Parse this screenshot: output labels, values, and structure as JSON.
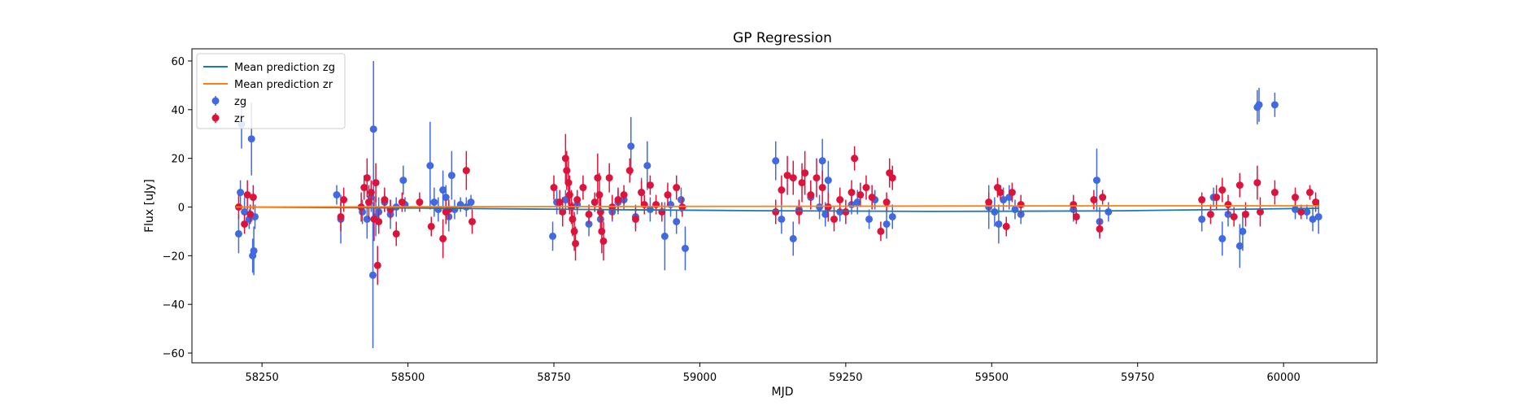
{
  "chart_data": {
    "type": "scatter",
    "title": "GP Regression",
    "xlabel": "MJD",
    "ylabel": "Flux [uJy]",
    "xlim": [
      58130,
      60160
    ],
    "ylim": [
      -64,
      65
    ],
    "xticks": [
      58250,
      58500,
      58750,
      59000,
      59250,
      59500,
      59750,
      60000
    ],
    "yticks": [
      -60,
      -40,
      -20,
      0,
      20,
      40,
      60
    ],
    "grid": false,
    "legend_position": "top-left",
    "lines": [
      {
        "name": "Mean prediction zg",
        "color": "#1f77b4",
        "x": [
          58205,
          58500,
          58800,
          59100,
          59400,
          59700,
          59900,
          60060
        ],
        "y": [
          0.0,
          -0.4,
          -1.0,
          -1.5,
          -1.8,
          -1.6,
          -1.0,
          -0.5
        ]
      },
      {
        "name": "Mean prediction zr",
        "color": "#ff7f0e",
        "x": [
          58205,
          58500,
          58800,
          59100,
          59400,
          59700,
          59900,
          60060
        ],
        "y": [
          0.0,
          0.1,
          0.2,
          0.3,
          0.4,
          0.5,
          0.5,
          0.5
        ]
      }
    ],
    "series": [
      {
        "name": "zg",
        "color": "#4169e1",
        "points": [
          [
            58210,
            -11,
            8
          ],
          [
            58213,
            6,
            5
          ],
          [
            58215,
            34,
            10
          ],
          [
            58220,
            -2,
            6
          ],
          [
            58228,
            -5,
            4
          ],
          [
            58232,
            28,
            15
          ],
          [
            58234,
            -20,
            7
          ],
          [
            58236,
            -18,
            10
          ],
          [
            58238,
            -4,
            5
          ],
          [
            58378,
            5,
            4
          ],
          [
            58385,
            -5,
            10
          ],
          [
            58422,
            -2,
            5
          ],
          [
            58430,
            -5,
            8
          ],
          [
            58437,
            4,
            6
          ],
          [
            58440,
            -28,
            30
          ],
          [
            58441,
            32,
            28
          ],
          [
            58445,
            -4,
            8
          ],
          [
            58450,
            -2,
            6
          ],
          [
            58460,
            2,
            4
          ],
          [
            58470,
            -3,
            6
          ],
          [
            58480,
            0,
            4
          ],
          [
            58492,
            11,
            6
          ],
          [
            58495,
            1,
            3
          ],
          [
            58538,
            17,
            18
          ],
          [
            58545,
            2,
            6
          ],
          [
            58552,
            -1,
            5
          ],
          [
            58560,
            7,
            8
          ],
          [
            58565,
            4,
            5
          ],
          [
            58570,
            -4,
            6
          ],
          [
            58575,
            13,
            10
          ],
          [
            58580,
            -1,
            4
          ],
          [
            58590,
            1,
            3
          ],
          [
            58600,
            0,
            4
          ],
          [
            58608,
            2,
            3
          ],
          [
            58748,
            -12,
            6
          ],
          [
            58755,
            2,
            5
          ],
          [
            58770,
            3,
            4
          ],
          [
            58790,
            1,
            4
          ],
          [
            58810,
            -7,
            5
          ],
          [
            58830,
            -5,
            6
          ],
          [
            58850,
            -2,
            4
          ],
          [
            58860,
            2,
            5
          ],
          [
            58870,
            3,
            4
          ],
          [
            58882,
            25,
            12
          ],
          [
            58890,
            -4,
            5
          ],
          [
            58900,
            6,
            6
          ],
          [
            58910,
            17,
            10
          ],
          [
            58915,
            -1,
            5
          ],
          [
            58940,
            -12,
            14
          ],
          [
            58950,
            1,
            5
          ],
          [
            58960,
            -6,
            5
          ],
          [
            58968,
            3,
            5
          ],
          [
            58975,
            -17,
            9
          ],
          [
            59130,
            19,
            8
          ],
          [
            59140,
            -5,
            6
          ],
          [
            59160,
            -13,
            7
          ],
          [
            59170,
            -1,
            4
          ],
          [
            59190,
            4,
            5
          ],
          [
            59205,
            0,
            5
          ],
          [
            59210,
            19,
            9
          ],
          [
            59215,
            -3,
            5
          ],
          [
            59220,
            11,
            8
          ],
          [
            59240,
            -2,
            4
          ],
          [
            59260,
            1,
            4
          ],
          [
            59270,
            2,
            5
          ],
          [
            59290,
            -5,
            4
          ],
          [
            59300,
            3,
            4
          ],
          [
            59320,
            -7,
            6
          ],
          [
            59330,
            -4,
            5
          ],
          [
            59495,
            0,
            9
          ],
          [
            59505,
            -2,
            6
          ],
          [
            59512,
            -7,
            8
          ],
          [
            59520,
            3,
            5
          ],
          [
            59530,
            4,
            5
          ],
          [
            59540,
            -1,
            4
          ],
          [
            59550,
            -3,
            4
          ],
          [
            59640,
            -1,
            5
          ],
          [
            59680,
            11,
            13
          ],
          [
            59685,
            -6,
            6
          ],
          [
            59700,
            -2,
            4
          ],
          [
            59860,
            -5,
            5
          ],
          [
            59880,
            4,
            4
          ],
          [
            59895,
            -13,
            7
          ],
          [
            59905,
            -3,
            5
          ],
          [
            59925,
            -16,
            9
          ],
          [
            59930,
            -10,
            8
          ],
          [
            59955,
            41,
            7
          ],
          [
            59958,
            42,
            7
          ],
          [
            59985,
            42,
            5
          ],
          [
            60020,
            -1,
            4
          ],
          [
            60040,
            -2,
            3
          ],
          [
            60050,
            -5,
            5
          ],
          [
            60060,
            -4,
            7
          ]
        ]
      },
      {
        "name": "zr",
        "color": "#dc143c",
        "points": [
          [
            58210,
            0,
            5
          ],
          [
            58220,
            -7,
            4
          ],
          [
            58225,
            5,
            6
          ],
          [
            58230,
            -3,
            4
          ],
          [
            58235,
            4,
            5
          ],
          [
            58385,
            -4,
            6
          ],
          [
            58390,
            3,
            5
          ],
          [
            58420,
            0,
            6
          ],
          [
            58425,
            8,
            5
          ],
          [
            58430,
            12,
            8
          ],
          [
            58433,
            2,
            7
          ],
          [
            58437,
            6,
            5
          ],
          [
            58442,
            -5,
            9
          ],
          [
            58445,
            10,
            8
          ],
          [
            58448,
            -24,
            8
          ],
          [
            58450,
            -6,
            5
          ],
          [
            58460,
            3,
            5
          ],
          [
            58470,
            -1,
            4
          ],
          [
            58480,
            -11,
            5
          ],
          [
            58490,
            2,
            4
          ],
          [
            58520,
            2,
            4
          ],
          [
            58540,
            -8,
            4
          ],
          [
            58560,
            -13,
            8
          ],
          [
            58565,
            -2,
            5
          ],
          [
            58570,
            -1,
            4
          ],
          [
            58600,
            15,
            8
          ],
          [
            58610,
            -6,
            5
          ],
          [
            58750,
            8,
            5
          ],
          [
            58760,
            2,
            5
          ],
          [
            58765,
            -2,
            6
          ],
          [
            58770,
            20,
            10
          ],
          [
            58772,
            15,
            8
          ],
          [
            58775,
            10,
            9
          ],
          [
            58777,
            5,
            8
          ],
          [
            58780,
            0,
            7
          ],
          [
            58782,
            -5,
            7
          ],
          [
            58785,
            -10,
            8
          ],
          [
            58787,
            -15,
            7
          ],
          [
            58790,
            3,
            4
          ],
          [
            58800,
            8,
            5
          ],
          [
            58810,
            -3,
            4
          ],
          [
            58820,
            2,
            4
          ],
          [
            58825,
            12,
            10
          ],
          [
            58828,
            5,
            9
          ],
          [
            58830,
            -2,
            8
          ],
          [
            58832,
            -10,
            9
          ],
          [
            58835,
            -14,
            8
          ],
          [
            58845,
            12,
            6
          ],
          [
            58850,
            0,
            5
          ],
          [
            58860,
            3,
            5
          ],
          [
            58870,
            5,
            4
          ],
          [
            58880,
            15,
            5
          ],
          [
            58890,
            -5,
            5
          ],
          [
            58900,
            6,
            5
          ],
          [
            58905,
            1,
            4
          ],
          [
            58915,
            9,
            4
          ],
          [
            58925,
            1,
            4
          ],
          [
            58935,
            -2,
            4
          ],
          [
            58945,
            5,
            5
          ],
          [
            58960,
            8,
            5
          ],
          [
            58970,
            0,
            4
          ],
          [
            59130,
            -2,
            5
          ],
          [
            59140,
            7,
            6
          ],
          [
            59150,
            13,
            8
          ],
          [
            59160,
            12,
            7
          ],
          [
            59170,
            -2,
            5
          ],
          [
            59175,
            10,
            8
          ],
          [
            59180,
            14,
            9
          ],
          [
            59190,
            5,
            6
          ],
          [
            59200,
            12,
            8
          ],
          [
            59210,
            8,
            7
          ],
          [
            59220,
            0,
            6
          ],
          [
            59230,
            -5,
            5
          ],
          [
            59240,
            3,
            5
          ],
          [
            59250,
            -2,
            5
          ],
          [
            59260,
            6,
            5
          ],
          [
            59265,
            20,
            5
          ],
          [
            59275,
            5,
            5
          ],
          [
            59285,
            8,
            5
          ],
          [
            59295,
            4,
            5
          ],
          [
            59310,
            -10,
            4
          ],
          [
            59320,
            2,
            4
          ],
          [
            59325,
            14,
            6
          ],
          [
            59330,
            12,
            5
          ],
          [
            59495,
            2,
            4
          ],
          [
            59510,
            8,
            4
          ],
          [
            59515,
            6,
            3
          ],
          [
            59525,
            -8,
            4
          ],
          [
            59535,
            6,
            4
          ],
          [
            59550,
            1,
            4
          ],
          [
            59640,
            1,
            4
          ],
          [
            59645,
            -4,
            3
          ],
          [
            59675,
            3,
            4
          ],
          [
            59685,
            -9,
            4
          ],
          [
            59690,
            4,
            3
          ],
          [
            59860,
            3,
            3
          ],
          [
            59875,
            -3,
            4
          ],
          [
            59885,
            4,
            5
          ],
          [
            59895,
            7,
            5
          ],
          [
            59905,
            1,
            4
          ],
          [
            59915,
            -4,
            4
          ],
          [
            59925,
            9,
            5
          ],
          [
            59935,
            -3,
            5
          ],
          [
            59955,
            10,
            7
          ],
          [
            59960,
            -2,
            6
          ],
          [
            59985,
            6,
            5
          ],
          [
            60020,
            4,
            4
          ],
          [
            60030,
            -2,
            3
          ],
          [
            60045,
            6,
            3
          ],
          [
            60055,
            2,
            4
          ]
        ]
      }
    ]
  }
}
